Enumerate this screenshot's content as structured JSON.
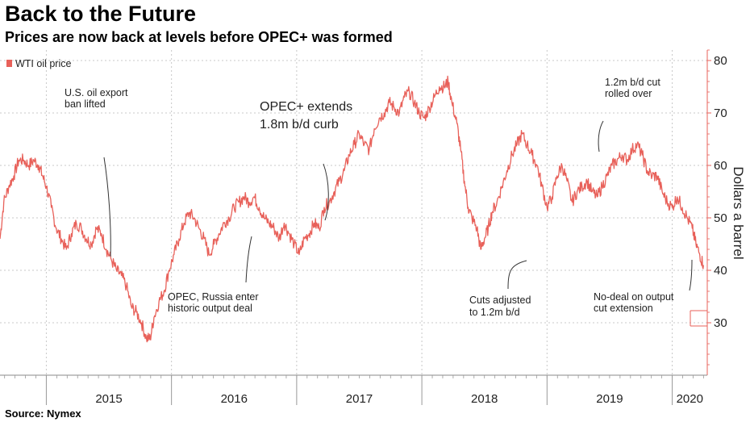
{
  "title": "Back to the Future",
  "subtitle": "Prices are now back at levels before OPEC+ was formed",
  "source": "Source: Nymex",
  "chart_data": {
    "type": "line",
    "ylabel": "Dollars a barrel",
    "ylim": [
      20,
      82
    ],
    "yticks": [
      30,
      40,
      50,
      60,
      70,
      80
    ],
    "xlim": [
      2014.63,
      2020.28
    ],
    "xticks": [
      "2015",
      "2016",
      "2017",
      "2018",
      "2019",
      "2020"
    ],
    "year_boundaries": [
      2015,
      2016,
      2017,
      2018,
      2019,
      2020
    ],
    "grid": true,
    "legend_position": "top-left",
    "series": [
      {
        "name": "WTI oil price",
        "color": "#e8615a",
        "points": [
          [
            2014.63,
            46
          ],
          [
            2014.66,
            53
          ],
          [
            2014.7,
            56
          ],
          [
            2014.74,
            58
          ],
          [
            2014.78,
            61
          ],
          [
            2014.82,
            61
          ],
          [
            2014.86,
            60
          ],
          [
            2014.9,
            61
          ],
          [
            2014.94,
            60
          ],
          [
            2014.97,
            58
          ],
          [
            2015.0,
            56
          ],
          [
            2015.04,
            52
          ],
          [
            2015.08,
            48
          ],
          [
            2015.12,
            46
          ],
          [
            2015.16,
            44
          ],
          [
            2015.2,
            47
          ],
          [
            2015.24,
            49
          ],
          [
            2015.28,
            48
          ],
          [
            2015.32,
            46
          ],
          [
            2015.36,
            45
          ],
          [
            2015.4,
            48
          ],
          [
            2015.44,
            47
          ],
          [
            2015.48,
            44
          ],
          [
            2015.52,
            42
          ],
          [
            2015.56,
            40
          ],
          [
            2015.6,
            39
          ],
          [
            2015.64,
            37
          ],
          [
            2015.68,
            33
          ],
          [
            2015.72,
            32
          ],
          [
            2015.76,
            30
          ],
          [
            2015.8,
            27
          ],
          [
            2015.83,
            27
          ],
          [
            2015.86,
            31
          ],
          [
            2015.9,
            34
          ],
          [
            2015.94,
            36
          ],
          [
            2015.98,
            40
          ],
          [
            2016.02,
            43
          ],
          [
            2016.06,
            46
          ],
          [
            2016.1,
            49
          ],
          [
            2016.14,
            51
          ],
          [
            2016.18,
            50
          ],
          [
            2016.22,
            48
          ],
          [
            2016.26,
            46
          ],
          [
            2016.3,
            43
          ],
          [
            2016.34,
            45
          ],
          [
            2016.38,
            47
          ],
          [
            2016.42,
            49
          ],
          [
            2016.46,
            50
          ],
          [
            2016.5,
            52
          ],
          [
            2016.54,
            53
          ],
          [
            2016.58,
            54
          ],
          [
            2016.62,
            53
          ],
          [
            2016.66,
            54
          ],
          [
            2016.7,
            52
          ],
          [
            2016.74,
            50
          ],
          [
            2016.78,
            49
          ],
          [
            2016.82,
            48
          ],
          [
            2016.86,
            46
          ],
          [
            2016.9,
            49
          ],
          [
            2016.94,
            47
          ],
          [
            2016.98,
            45
          ],
          [
            2017.02,
            43
          ],
          [
            2017.06,
            46
          ],
          [
            2017.1,
            47
          ],
          [
            2017.14,
            49
          ],
          [
            2017.18,
            48
          ],
          [
            2017.22,
            52
          ],
          [
            2017.26,
            53
          ],
          [
            2017.3,
            55
          ],
          [
            2017.34,
            57
          ],
          [
            2017.38,
            59
          ],
          [
            2017.42,
            62
          ],
          [
            2017.46,
            64
          ],
          [
            2017.5,
            66
          ],
          [
            2017.54,
            64
          ],
          [
            2017.58,
            63
          ],
          [
            2017.62,
            67
          ],
          [
            2017.66,
            69
          ],
          [
            2017.7,
            70
          ],
          [
            2017.74,
            72
          ],
          [
            2017.78,
            71
          ],
          [
            2017.82,
            70
          ],
          [
            2017.86,
            73
          ],
          [
            2017.9,
            74
          ],
          [
            2017.94,
            72
          ],
          [
            2017.98,
            70
          ],
          [
            2018.02,
            69
          ],
          [
            2018.06,
            71
          ],
          [
            2018.1,
            73
          ],
          [
            2018.14,
            75
          ],
          [
            2018.18,
            75
          ],
          [
            2018.21,
            76
          ],
          [
            2018.24,
            72
          ],
          [
            2018.28,
            68
          ],
          [
            2018.31,
            63
          ],
          [
            2018.34,
            57
          ],
          [
            2018.37,
            52
          ],
          [
            2018.4,
            50
          ],
          [
            2018.44,
            48
          ],
          [
            2018.47,
            44
          ],
          [
            2018.5,
            46
          ],
          [
            2018.53,
            48
          ],
          [
            2018.56,
            51
          ],
          [
            2018.6,
            53
          ],
          [
            2018.64,
            56
          ],
          [
            2018.68,
            59
          ],
          [
            2018.72,
            62
          ],
          [
            2018.76,
            64
          ],
          [
            2018.8,
            66
          ],
          [
            2018.84,
            64
          ],
          [
            2018.88,
            62
          ],
          [
            2018.92,
            60
          ],
          [
            2018.96,
            56
          ],
          [
            2019.0,
            52
          ],
          [
            2019.04,
            54
          ],
          [
            2019.08,
            58
          ],
          [
            2019.12,
            60
          ],
          [
            2019.16,
            57
          ],
          [
            2019.2,
            53
          ],
          [
            2019.24,
            55
          ],
          [
            2019.28,
            56
          ],
          [
            2019.32,
            57
          ],
          [
            2019.36,
            55
          ],
          [
            2019.4,
            54
          ],
          [
            2019.44,
            56
          ],
          [
            2019.48,
            58
          ],
          [
            2019.52,
            60
          ],
          [
            2019.56,
            61
          ],
          [
            2019.6,
            62
          ],
          [
            2019.64,
            61
          ],
          [
            2019.68,
            63
          ],
          [
            2019.72,
            64
          ],
          [
            2019.76,
            62
          ],
          [
            2019.8,
            59
          ],
          [
            2019.84,
            58
          ],
          [
            2019.88,
            58
          ],
          [
            2019.92,
            55
          ],
          [
            2019.96,
            53
          ],
          [
            2020.0,
            52
          ],
          [
            2020.04,
            54
          ],
          [
            2020.08,
            52
          ],
          [
            2020.12,
            50
          ],
          [
            2020.16,
            48
          ],
          [
            2020.19,
            45
          ],
          [
            2020.22,
            43
          ],
          [
            2020.25,
            41
          ]
        ]
      }
    ],
    "annotations": [
      {
        "lines": [
          "U.S. oil export",
          "ban lifted"
        ],
        "x": 2015.96
      },
      {
        "lines": [
          "OPEC+ extends",
          "1.8m b/d curb"
        ],
        "x": 2017.39
      },
      {
        "lines": [
          "OPEC, Russia enter",
          "historic output deal"
        ],
        "x": 2016.91
      },
      {
        "lines": [
          "Cuts adjusted",
          "to 1.2m b/d"
        ],
        "x": 2018.96
      },
      {
        "lines": [
          "1.2m b/d cut",
          "rolled over"
        ],
        "x": 2019.51
      },
      {
        "lines": [
          "No-deal on output",
          "cut extension"
        ],
        "x": 2020.18
      }
    ]
  }
}
